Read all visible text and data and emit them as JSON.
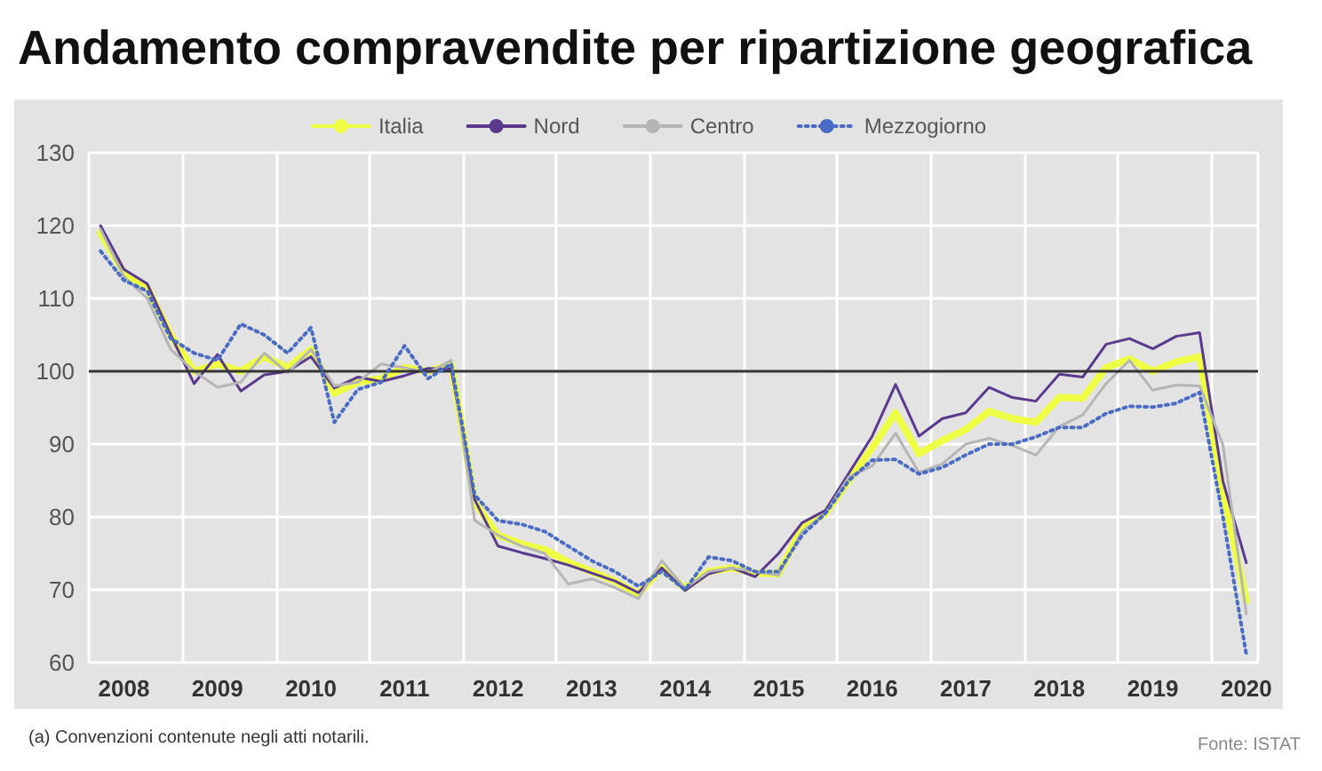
{
  "chart_data": {
    "type": "line",
    "title": "Andamento compravendite per ripartizione geografica",
    "categories": [
      null,
      "2008",
      null,
      null,
      null,
      "2009",
      null,
      null,
      null,
      "2010",
      null,
      null,
      null,
      "2011",
      null,
      null,
      null,
      "2012",
      null,
      null,
      null,
      "2013",
      null,
      null,
      null,
      "2014",
      null,
      null,
      null,
      "2015",
      null,
      null,
      null,
      "2016",
      null,
      null,
      null,
      "2017",
      null,
      null,
      null,
      "2018",
      null,
      null,
      null,
      "2019",
      null,
      null,
      null,
      "2020"
    ],
    "series": [
      {
        "name": "Italia",
        "color": "#eeff44",
        "line_style": "solid",
        "values": [
          119,
          113.5,
          111.5,
          105,
          100,
          101,
          100,
          102,
          100.5,
          103,
          97,
          98.5,
          99,
          100.5,
          100,
          101,
          82,
          77.5,
          76.3,
          75.5,
          73.8,
          72.5,
          71.2,
          69.4,
          73,
          70.2,
          72.5,
          73,
          72.3,
          72.2,
          78.5,
          80.5,
          85,
          89.5,
          94.3,
          88.7,
          90.5,
          92,
          94.5,
          93.5,
          93,
          96.4,
          96.3,
          100.5,
          101.7,
          100,
          101.3,
          102,
          83.4,
          68.5
        ]
      },
      {
        "name": "Nord",
        "color": "#5b3a8e",
        "line_style": "solid",
        "values": [
          120,
          114,
          112,
          105,
          98.3,
          102.3,
          97.3,
          99.5,
          100,
          102,
          97.7,
          99.2,
          98.6,
          99.4,
          100.4,
          100.3,
          82.4,
          76,
          75.1,
          74.3,
          73.4,
          72.3,
          71.2,
          69.6,
          73,
          69.9,
          72.2,
          73,
          71.8,
          75,
          79.2,
          80.9,
          86,
          91.1,
          98.2,
          91.1,
          93.5,
          94.3,
          97.8,
          96.4,
          95.9,
          99.6,
          99.2,
          103.7,
          104.5,
          103.1,
          104.8,
          105.3,
          84.9,
          73.7
        ]
      },
      {
        "name": "Centro",
        "color": "#b5b5b5",
        "line_style": "solid",
        "values": [
          119.5,
          113,
          110,
          103,
          100,
          97.8,
          98.5,
          102.5,
          99.8,
          103,
          98,
          98.5,
          101,
          100.5,
          99.8,
          101.5,
          79.5,
          77.5,
          76,
          75,
          70.8,
          71.5,
          70.3,
          68.8,
          74,
          70.2,
          72.5,
          73,
          72.5,
          72,
          78,
          80.5,
          85.5,
          87,
          91.5,
          86.1,
          87.3,
          90,
          90.8,
          89.8,
          88.5,
          92.4,
          94,
          98.3,
          101.5,
          97.4,
          98.1,
          98,
          89.9,
          66.7
        ]
      },
      {
        "name": "Mezzogiorno",
        "color": "#4a6cc4",
        "line_style": "dotted",
        "values": [
          116.5,
          112.5,
          111,
          104.5,
          102.5,
          101.5,
          106.5,
          105,
          102.5,
          106,
          93,
          97.5,
          98.5,
          103.5,
          99,
          101,
          83,
          79.5,
          79,
          78,
          76,
          74,
          72.5,
          70.5,
          72.5,
          70,
          74.5,
          74,
          72.5,
          72.5,
          77.5,
          80.5,
          85,
          87.8,
          87.9,
          85.9,
          86.8,
          88.5,
          90,
          90,
          91,
          92.3,
          92.3,
          94.2,
          95.2,
          95.1,
          95.6,
          97.1,
          80,
          61.1
        ]
      }
    ],
    "ylim": [
      60,
      130
    ],
    "yticks": [
      60,
      70,
      80,
      90,
      100,
      110,
      120,
      130
    ],
    "grid": true,
    "legend": "top",
    "ref_lines": [
      {
        "axis": "y",
        "value": 100,
        "color": "#333333"
      }
    ],
    "annotations": [
      "(a) Convenzioni contenute negli atti notarili.",
      "Fonte: ISTAT"
    ]
  }
}
